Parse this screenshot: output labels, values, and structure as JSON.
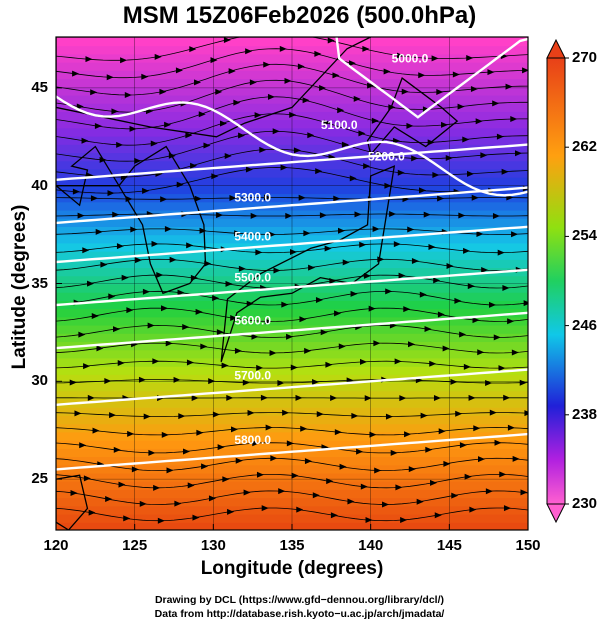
{
  "title": "MSM 15Z06Feb2026 (500.0hPa)",
  "x_axis": {
    "label": "Longitude (degrees)",
    "ticks": [
      {
        "value": 120,
        "label": "120"
      },
      {
        "value": 125,
        "label": "125"
      },
      {
        "value": 130,
        "label": "130"
      },
      {
        "value": 135,
        "label": "135"
      },
      {
        "value": 140,
        "label": "140"
      },
      {
        "value": 145,
        "label": "145"
      },
      {
        "value": 150,
        "label": "150"
      }
    ],
    "range": [
      120,
      150
    ]
  },
  "y_axis": {
    "label": "Latitude  (degrees)",
    "ticks": [
      {
        "value": 25,
        "label": "25"
      },
      {
        "value": 30,
        "label": "30"
      },
      {
        "value": 35,
        "label": "35"
      },
      {
        "value": 40,
        "label": "40"
      },
      {
        "value": 45,
        "label": "45"
      }
    ],
    "range": [
      22.4,
      47.6
    ]
  },
  "colorbar": {
    "ticks": [
      {
        "value": 230,
        "label": "230"
      },
      {
        "value": 238,
        "label": "238"
      },
      {
        "value": 246,
        "label": "246"
      },
      {
        "value": 254,
        "label": "254"
      },
      {
        "value": 262,
        "label": "262"
      },
      {
        "value": 270,
        "label": "270"
      }
    ],
    "range": [
      230,
      270
    ],
    "colors": [
      "#e040c0",
      "#8a2be2",
      "#1f3fe0",
      "#15c8e8",
      "#20d040",
      "#b4e010",
      "#ff9a10",
      "#e84a10"
    ]
  },
  "contours": [
    {
      "label": "5000.0"
    },
    {
      "label": "5100.0"
    },
    {
      "label": "5200.0"
    },
    {
      "label": "5300.0"
    },
    {
      "label": "5400.0"
    },
    {
      "label": "5500.0"
    },
    {
      "label": "5600.0"
    },
    {
      "label": "5700.0"
    },
    {
      "label": "5800.0"
    }
  ],
  "credits": [
    "Drawing by DCL (https://www.gfd−dennou.org/library/dcl/)",
    "Data from http://database.rish.kyoto−u.ac.jp/arch/jmadata/"
  ]
}
